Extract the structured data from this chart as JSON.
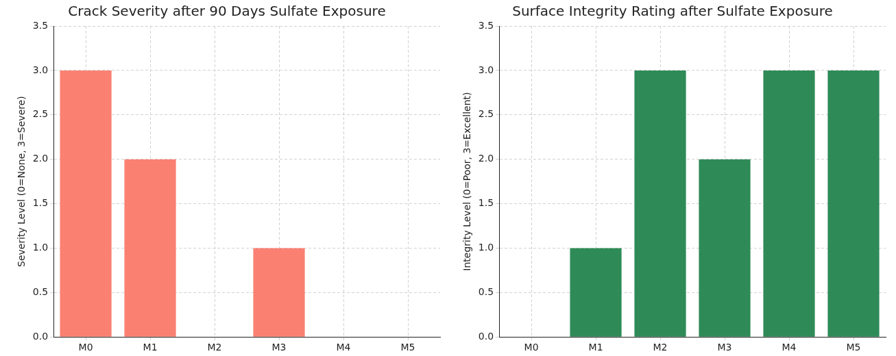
{
  "chart_data": [
    {
      "type": "bar",
      "title": "Crack Severity after 90 Days Sulfate Exposure",
      "ylabel": "Severity Level (0=None, 3=Severe)",
      "categories": [
        "M0",
        "M1",
        "M2",
        "M3",
        "M4",
        "M5"
      ],
      "values": [
        3,
        2,
        0,
        1,
        0,
        0
      ],
      "color": "#fa8072",
      "ylim": [
        0,
        3.5
      ],
      "yticks": [
        {
          "value": 0,
          "label": "0.0"
        },
        {
          "value": 0.5,
          "label": "0.5"
        },
        {
          "value": 1,
          "label": "1.0"
        },
        {
          "value": 1.5,
          "label": "1.5"
        },
        {
          "value": 2,
          "label": "2.0"
        },
        {
          "value": 2.5,
          "label": "2.5"
        },
        {
          "value": 3,
          "label": "3.0"
        },
        {
          "value": 3.5,
          "label": "3.5"
        }
      ],
      "grid": true
    },
    {
      "type": "bar",
      "title": "Surface Integrity Rating after Sulfate Exposure",
      "ylabel": "Integrity Level (0=Poor, 3=Excellent)",
      "categories": [
        "M0",
        "M1",
        "M2",
        "M3",
        "M4",
        "M5"
      ],
      "values": [
        0,
        1,
        3,
        2,
        3,
        3
      ],
      "color": "#2e8b57",
      "ylim": [
        0,
        3.5
      ],
      "yticks": [
        {
          "value": 0,
          "label": "0.0"
        },
        {
          "value": 0.5,
          "label": "0.5"
        },
        {
          "value": 1,
          "label": "1.0"
        },
        {
          "value": 1.5,
          "label": "1.5"
        },
        {
          "value": 2,
          "label": "2.0"
        },
        {
          "value": 2.5,
          "label": "2.5"
        },
        {
          "value": 3,
          "label": "3.0"
        },
        {
          "value": 3.5,
          "label": "3.5"
        }
      ],
      "grid": true
    }
  ]
}
